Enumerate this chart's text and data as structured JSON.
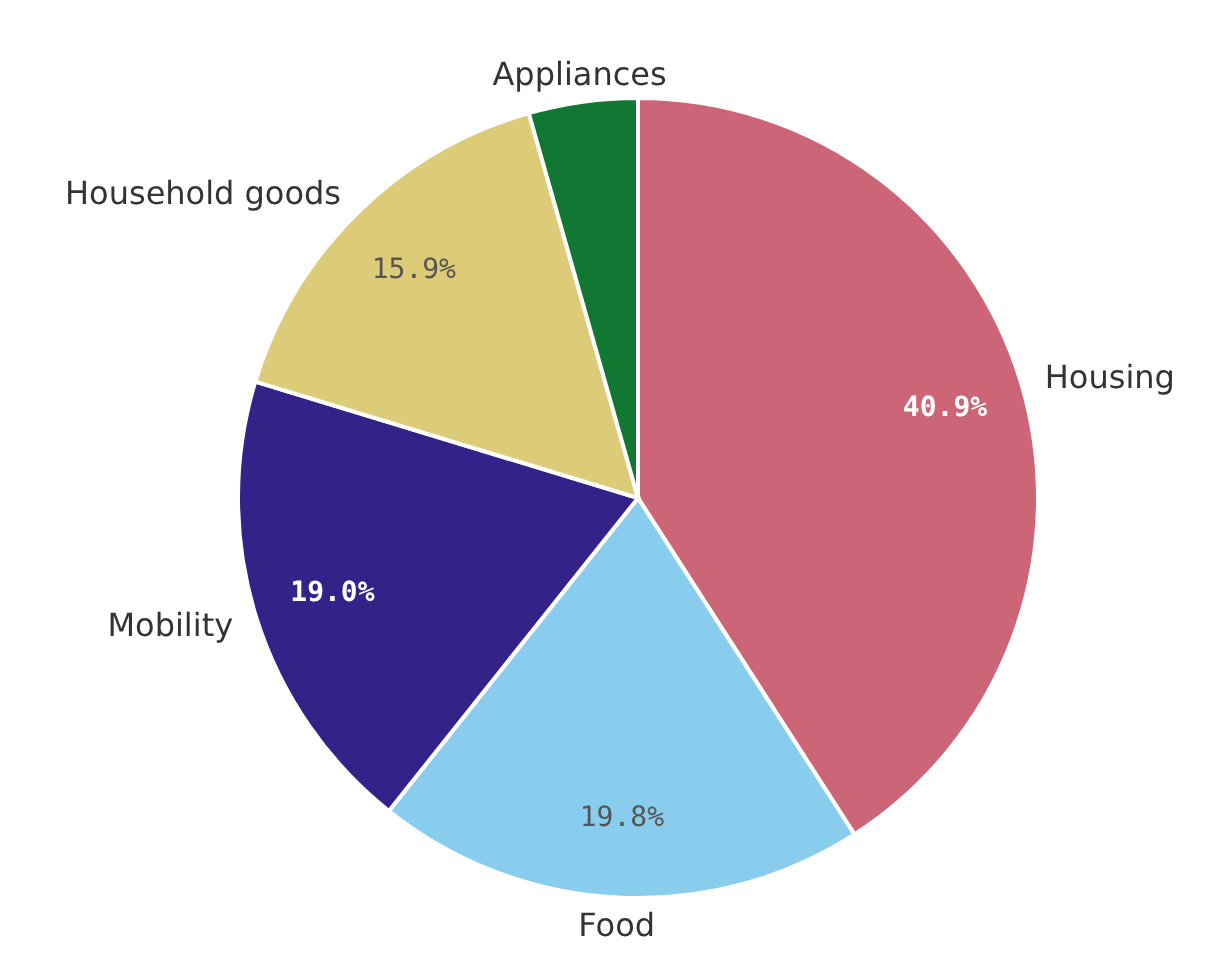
{
  "chart_data": {
    "type": "pie",
    "categories": [
      "Housing",
      "Food",
      "Mobility",
      "Household goods",
      "Appliances"
    ],
    "values": [
      40.9,
      19.8,
      19.0,
      15.9,
      4.4
    ],
    "colors": [
      "#cc6677",
      "#88ccee",
      "#332288",
      "#ddcc77",
      "#117733"
    ],
    "value_labels": [
      "40.9%",
      "19.8%",
      "19.0%",
      "15.9%",
      null
    ],
    "legend": false
  }
}
